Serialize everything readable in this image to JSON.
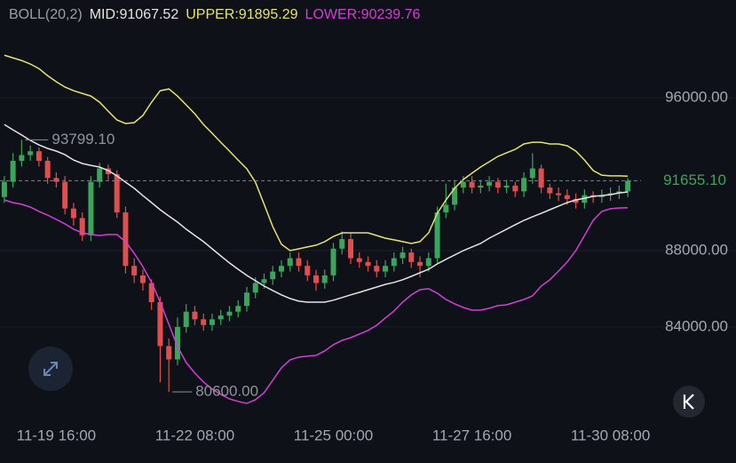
{
  "chart_data": {
    "type": "candlestick",
    "indicator": "BOLL(20,2)",
    "categories": [
      null,
      null,
      null,
      null,
      null,
      null,
      "11-19 16:00",
      null,
      null,
      null,
      null,
      null,
      null,
      null,
      null,
      null,
      null,
      null,
      null,
      null,
      null,
      null,
      "11-22 08:00",
      null,
      null,
      null,
      null,
      null,
      null,
      null,
      null,
      null,
      null,
      null,
      null,
      null,
      null,
      null,
      "11-25 00:00",
      null,
      null,
      null,
      null,
      null,
      null,
      null,
      null,
      null,
      null,
      null,
      null,
      null,
      null,
      null,
      "11-27 16:00",
      null,
      null,
      null,
      null,
      null,
      null,
      null,
      null,
      null,
      null,
      null,
      null,
      null,
      null,
      null,
      "11-30 08:00",
      null,
      null
    ],
    "open": [
      90800,
      91600,
      92700,
      93000,
      93200,
      92700,
      91800,
      91600,
      90200,
      89700,
      88800,
      91600,
      92300,
      92000,
      90000,
      87200,
      86700,
      86300,
      85300,
      83000,
      82300,
      84000,
      84800,
      84400,
      84100,
      84400,
      84600,
      84800,
      85100,
      85800,
      86300,
      86500,
      86900,
      87200,
      87600,
      87200,
      86700,
      86300,
      86700,
      88100,
      88600,
      87600,
      87400,
      87200,
      86900,
      87200,
      87600,
      87900,
      87400,
      87200,
      87600,
      90000,
      90400,
      91300,
      91600,
      91300,
      91400,
      91600,
      91300,
      91400,
      91100,
      91800,
      92300,
      91300,
      91000,
      90900,
      90700,
      90500,
      90900,
      90800,
      90900,
      91000,
      91100
    ],
    "high": [
      91900,
      93100,
      93799.1,
      93500,
      93400,
      92900,
      92100,
      91900,
      90500,
      90000,
      91900,
      92600,
      92500,
      92200,
      90300,
      87600,
      87000,
      86500,
      85600,
      83400,
      84500,
      85200,
      85100,
      84700,
      84700,
      84900,
      85100,
      85400,
      86100,
      86600,
      86800,
      87200,
      87500,
      87900,
      87900,
      87500,
      87000,
      87000,
      88400,
      89000,
      88900,
      87900,
      87700,
      87500,
      87500,
      87900,
      88200,
      88100,
      87700,
      87900,
      90300,
      91500,
      91700,
      91900,
      91900,
      91700,
      91900,
      91800,
      91700,
      91600,
      92100,
      93100,
      92500,
      91500,
      91300,
      91200,
      91000,
      91200,
      91100,
      91200,
      91300,
      91400,
      91800
    ],
    "low": [
      90500,
      91300,
      92400,
      92700,
      92400,
      91500,
      91300,
      89900,
      89300,
      88500,
      88500,
      91300,
      91700,
      89700,
      86800,
      86300,
      85900,
      84900,
      81100,
      80600,
      82000,
      83700,
      84100,
      83800,
      83800,
      84100,
      84300,
      84500,
      84800,
      85500,
      86000,
      86200,
      86600,
      86900,
      86900,
      86400,
      85900,
      86000,
      86400,
      87800,
      87300,
      87100,
      86900,
      86600,
      86600,
      86900,
      87300,
      87100,
      86600,
      86900,
      87300,
      89700,
      90100,
      91000,
      91000,
      91000,
      91100,
      91000,
      91000,
      90800,
      90800,
      91500,
      91000,
      90700,
      90600,
      90400,
      90200,
      90200,
      90500,
      90500,
      90600,
      90700,
      90800
    ],
    "close": [
      91600,
      92700,
      93000,
      93200,
      92700,
      91800,
      91600,
      90200,
      89700,
      88800,
      91600,
      92300,
      92000,
      90000,
      87200,
      86700,
      86300,
      85300,
      83000,
      82300,
      84000,
      84800,
      84400,
      84100,
      84400,
      84600,
      84800,
      85100,
      85800,
      86300,
      86500,
      86900,
      87200,
      87600,
      87200,
      86700,
      86300,
      86700,
      88100,
      88600,
      87600,
      87400,
      87200,
      86900,
      87200,
      87600,
      87900,
      87400,
      87200,
      87600,
      90000,
      90400,
      91300,
      91600,
      91300,
      91400,
      91600,
      91300,
      91400,
      91100,
      91800,
      92300,
      91300,
      91000,
      90900,
      90700,
      90500,
      90900,
      90800,
      90900,
      91000,
      91100,
      91655.1
    ],
    "up_color": "#3aa55c",
    "down_color": "#df4f4f",
    "series": [
      {
        "name": "MID:91067.52",
        "color": "#e4e4e4",
        "values": [
          94600,
          94320,
          94050,
          93770,
          93530,
          93350,
          93210,
          93020,
          92740,
          92560,
          92460,
          92370,
          92190,
          91910,
          91580,
          91260,
          90880,
          90510,
          90140,
          89810,
          89490,
          89120,
          88790,
          88470,
          88090,
          87720,
          87350,
          87020,
          86700,
          86420,
          86140,
          85910,
          85680,
          85490,
          85350,
          85300,
          85300,
          85300,
          85400,
          85540,
          85680,
          85810,
          85950,
          86090,
          86230,
          86330,
          86470,
          86650,
          86840,
          87020,
          87300,
          87540,
          87770,
          88000,
          88190,
          88370,
          88650,
          88880,
          89120,
          89350,
          89580,
          89770,
          89950,
          90140,
          90330,
          90510,
          90650,
          90740,
          90840,
          90880,
          90930,
          91020,
          91067.52
        ]
      },
      {
        "name": "UPPER:91895.29",
        "color": "#e8e36c",
        "values": [
          98230,
          98090,
          97950,
          97770,
          97530,
          97160,
          96840,
          96560,
          96370,
          96230,
          96090,
          95770,
          95300,
          94840,
          94650,
          94700,
          95070,
          95770,
          96370,
          96460,
          96090,
          95630,
          95160,
          94600,
          94140,
          93670,
          93210,
          92740,
          92280,
          91580,
          90420,
          89260,
          88330,
          88000,
          88090,
          88190,
          88280,
          88470,
          88740,
          88930,
          88930,
          88930,
          88930,
          88790,
          88650,
          88560,
          88470,
          88370,
          88470,
          88930,
          89950,
          90650,
          91260,
          91720,
          92050,
          92370,
          92650,
          92930,
          93120,
          93300,
          93580,
          93670,
          93670,
          93580,
          93580,
          93490,
          93210,
          92740,
          92190,
          91950,
          91910,
          91910,
          91895.29
        ]
      },
      {
        "name": "LOWER:90239.76",
        "color": "#d33fd6",
        "values": [
          90650,
          90510,
          90420,
          90280,
          90050,
          89860,
          89630,
          89400,
          89120,
          88930,
          88840,
          88790,
          88840,
          88840,
          88470,
          87860,
          87160,
          86330,
          85300,
          84140,
          82980,
          82140,
          81580,
          81120,
          80750,
          80470,
          80230,
          80100,
          80000,
          80190,
          80560,
          81210,
          81860,
          82280,
          82420,
          82470,
          82510,
          82750,
          83070,
          83300,
          83440,
          83630,
          83820,
          84090,
          84470,
          84840,
          85300,
          85680,
          85950,
          86000,
          85770,
          85440,
          85210,
          85020,
          84880,
          84880,
          84980,
          85120,
          85160,
          85300,
          85440,
          85630,
          86140,
          86470,
          86930,
          87400,
          88000,
          88790,
          89580,
          90050,
          90190,
          90230,
          90239.76
        ]
      }
    ],
    "ylim": [
      79250,
      101120
    ],
    "yticks": [
      {
        "value": 84000,
        "label": "84000.00"
      },
      {
        "value": 88000,
        "label": "88000.00"
      },
      {
        "value": 96000,
        "label": "96000.00"
      }
    ],
    "grid": true,
    "max_label": "93799.10",
    "min_label": "80600.00",
    "last_label": "91655.10"
  }
}
